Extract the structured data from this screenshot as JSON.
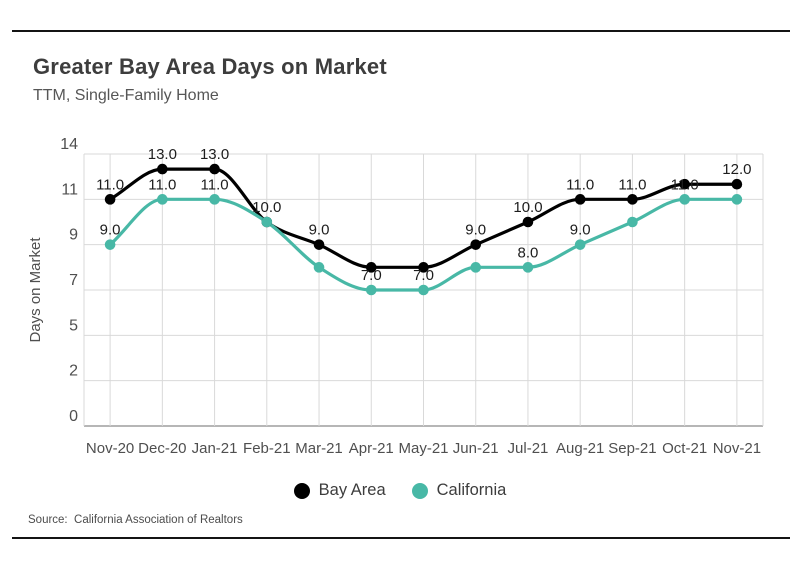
{
  "header": {
    "title": "Greater Bay Area Days on Market",
    "subtitle": "TTM, Single-Family Home"
  },
  "source": {
    "text": "Source:  California Association of Realtors"
  },
  "legend": {
    "items": [
      {
        "label": "Bay Area",
        "color": "#000000"
      },
      {
        "label": "California",
        "color": "#48b8a6"
      }
    ]
  },
  "colors": {
    "grid": "#d9d9d9",
    "axis": "#9e9e9e",
    "tick_text": "#4f4f4f",
    "value_label": "#1d1d1d",
    "bay_area": "#000000",
    "california": "#48b8a6"
  },
  "chart_data": {
    "type": "line",
    "title": "Greater Bay Area Days on Market",
    "subtitle": "TTM, Single-Family Home",
    "xlabel": "",
    "ylabel": "Days on Market",
    "x": [
      "Nov-20",
      "Dec-20",
      "Jan-21",
      "Feb-21",
      "Mar-21",
      "Apr-21",
      "May-21",
      "Jun-21",
      "Jul-21",
      "Aug-21",
      "Sep-21",
      "Oct-21",
      "Nov-21"
    ],
    "y_ticks": [
      0,
      2,
      5,
      7,
      9,
      11,
      14
    ],
    "ylim": [
      0,
      14
    ],
    "grid": true,
    "curve": "monotone",
    "legend_position": "bottom",
    "series": [
      {
        "name": "Bay Area",
        "color": "#000000",
        "values": [
          11,
          13,
          13,
          10,
          9,
          8,
          8,
          9,
          10,
          11,
          11,
          12,
          12
        ],
        "point_labels": [
          "11.0",
          "13.0",
          "13.0",
          null,
          "9.0",
          null,
          null,
          "9.0",
          "10.0",
          "11.0",
          "11.0",
          null,
          "12.0"
        ]
      },
      {
        "name": "California",
        "color": "#48b8a6",
        "values": [
          9,
          11,
          11,
          10,
          8,
          7,
          7,
          8,
          8,
          9,
          10,
          11,
          11
        ],
        "point_labels": [
          "9.0",
          "11.0",
          "11.0",
          "10.0",
          null,
          "7.0",
          "7.0",
          null,
          "8.0",
          "9.0",
          null,
          "11.0",
          null
        ]
      }
    ]
  }
}
